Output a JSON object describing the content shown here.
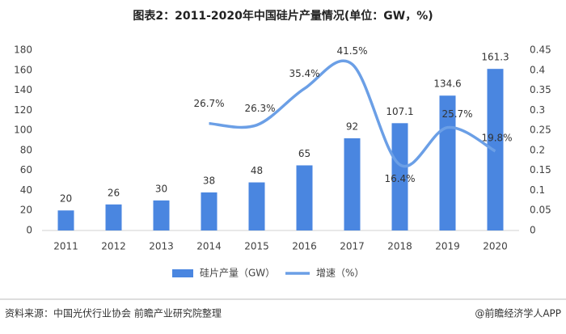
{
  "chart_data": {
    "type": "bar",
    "title": "图表2：2011-2020年中国硅片产量情况(单位：GW，%)",
    "categories": [
      "2011",
      "2012",
      "2013",
      "2014",
      "2015",
      "2016",
      "2017",
      "2018",
      "2019",
      "2020"
    ],
    "series": [
      {
        "name": "硅片产量（GW）",
        "type": "bar",
        "color": "#4a86e0",
        "values": [
          20,
          26,
          30,
          38,
          48,
          65,
          92,
          107.1,
          134.6,
          161.3
        ]
      },
      {
        "name": "增速（%）",
        "type": "line",
        "axis": "y2",
        "color": "#6b9fe6",
        "values": [
          null,
          null,
          null,
          0.267,
          0.263,
          0.354,
          0.415,
          0.164,
          0.257,
          0.198
        ],
        "value_labels": [
          null,
          null,
          null,
          "26.7%",
          "26.3%",
          "35.4%",
          "41.5%",
          "16.4%",
          "25.7%",
          "19.8%"
        ]
      }
    ],
    "ylim": [
      0,
      180
    ],
    "yticks": [
      0,
      20,
      40,
      60,
      80,
      100,
      120,
      140,
      160,
      180
    ],
    "y2lim": [
      0,
      0.45
    ],
    "y2ticks": [
      0,
      0.05,
      0.1,
      0.15,
      0.2,
      0.25,
      0.3,
      0.35,
      0.4,
      0.45
    ],
    "source": "资料来源：中国光伏行业协会 前瞻产业研究院整理",
    "credit": "@前瞻经济学人APP"
  }
}
